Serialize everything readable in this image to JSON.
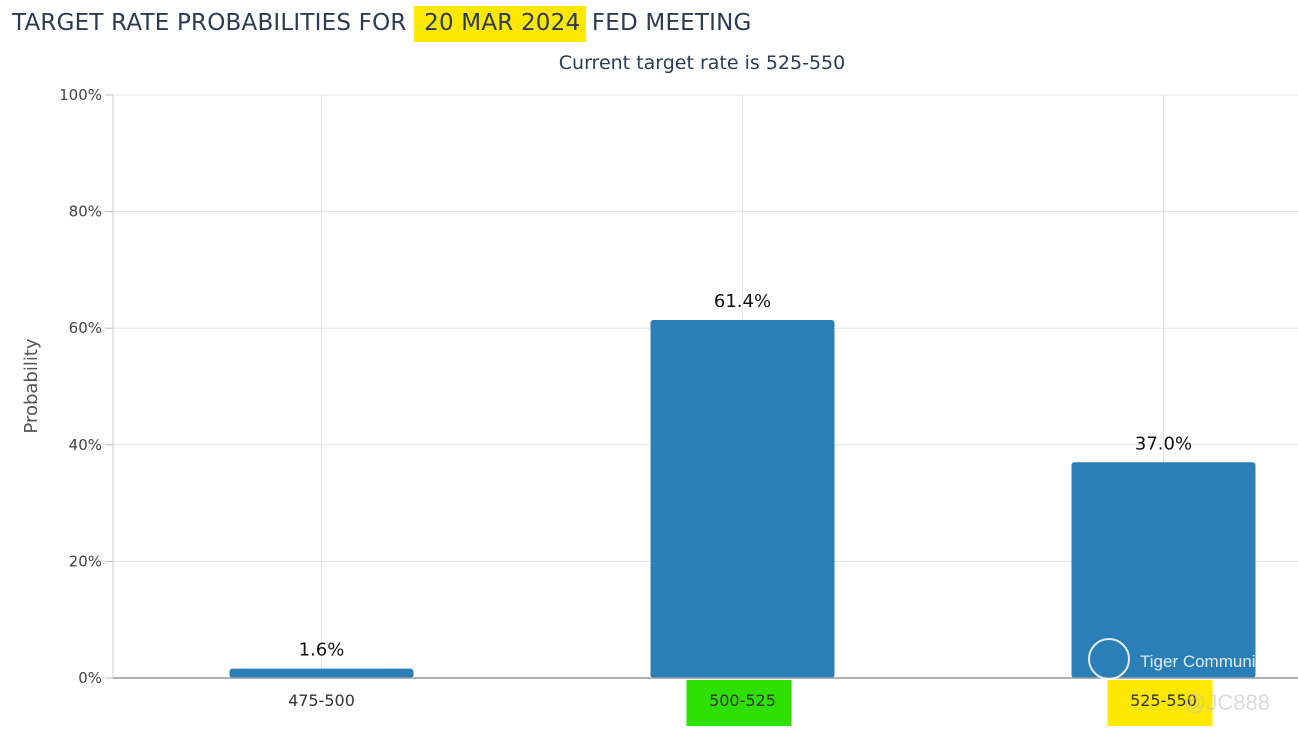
{
  "header": {
    "title_prefix": "TARGET RATE PROBABILITIES FOR",
    "title_date": "20 MAR 2024",
    "title_suffix": "FED MEETING",
    "subtitle": "Current target rate is 525-550"
  },
  "watermark": {
    "brand": "Tiger Community",
    "user": "@JC888"
  },
  "colors": {
    "bar": "#2b7fb8",
    "highlight_yellow": "#ffe800",
    "highlight_green": "#2ee000",
    "title_text": "#2c3a55"
  },
  "chart_data": {
    "type": "bar",
    "title": "TARGET RATE PROBABILITIES FOR 20 MAR 2024 FED MEETING",
    "subtitle": "Current target rate is 525-550",
    "ylabel": "Probability",
    "xlabel": "",
    "categories": [
      "475-500",
      "500-525",
      "525-550"
    ],
    "values": [
      1.6,
      61.4,
      37.0
    ],
    "data_labels": [
      "1.6%",
      "61.4%",
      "37.0%"
    ],
    "ylim": [
      0,
      100
    ],
    "yticks": [
      0,
      20,
      40,
      60,
      80,
      100
    ],
    "ytick_labels": [
      "0%",
      "20%",
      "40%",
      "60%",
      "80%",
      "100%"
    ],
    "grid": true,
    "legend": "none",
    "highlighted_categories": {
      "500-525": "green",
      "525-550": "yellow"
    }
  }
}
